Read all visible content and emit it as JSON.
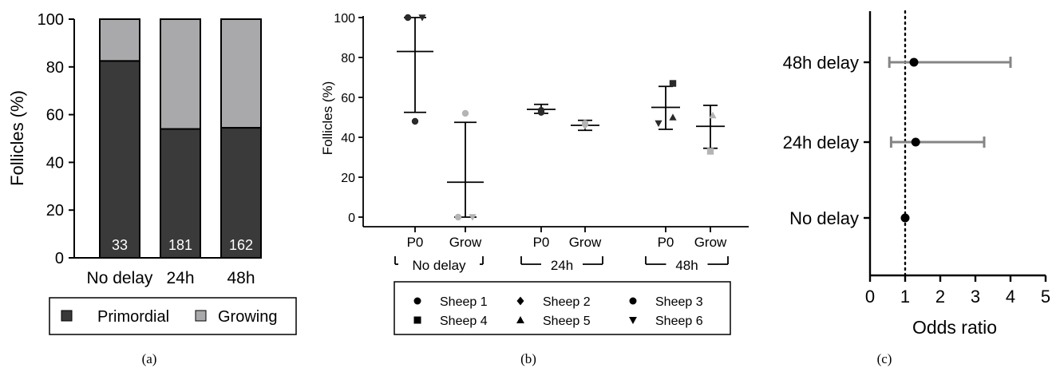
{
  "chart_data": [
    {
      "panel": "(a)",
      "type": "bar",
      "stacked": true,
      "categories": [
        "No delay",
        "24h",
        "48h"
      ],
      "series": [
        {
          "name": "Primordial",
          "values": [
            82.5,
            54,
            54.5
          ],
          "color": "#3a3a3a"
        },
        {
          "name": "Growing",
          "values": [
            17.5,
            46,
            45.5
          ],
          "color": "#a9a9ac"
        }
      ],
      "bar_labels": [
        "33",
        "181",
        "162"
      ],
      "ylabel": "Follicles (%)",
      "yticks": [
        "0",
        "20",
        "40",
        "60",
        "80",
        "100"
      ],
      "ylim": [
        0,
        100
      ],
      "legend_position": "bottom"
    },
    {
      "panel": "(b)",
      "type": "scatter",
      "ylabel": "Follicles (%)",
      "ylim": [
        0,
        100
      ],
      "yticks": [
        "0",
        "20",
        "40",
        "60",
        "80",
        "100"
      ],
      "categories": [
        "P0",
        "Grow",
        "P0",
        "Grow",
        "P0",
        "Grow"
      ],
      "groups": [
        {
          "label": "No delay",
          "members": [
            0,
            1
          ]
        },
        {
          "label": "24h",
          "members": [
            2,
            3
          ]
        },
        {
          "label": "48h",
          "members": [
            4,
            5
          ]
        }
      ],
      "summary": [
        {
          "category": 0,
          "mean": 83,
          "lower": 52.5,
          "upper": 100
        },
        {
          "category": 1,
          "mean": 17.5,
          "lower": 0,
          "upper": 47.5
        },
        {
          "category": 2,
          "mean": 54,
          "lower": 52,
          "upper": 56.5
        },
        {
          "category": 3,
          "mean": 46,
          "lower": 43.5,
          "upper": 48.5
        },
        {
          "category": 4,
          "mean": 55,
          "lower": 44,
          "upper": 65.5
        },
        {
          "category": 5,
          "mean": 45.5,
          "lower": 34.5,
          "upper": 56
        }
      ],
      "points": [
        {
          "category": 0,
          "sheep": "Sheep 1",
          "y": 100,
          "dx": -0.15
        },
        {
          "category": 0,
          "sheep": "Sheep 6",
          "y": 100,
          "dx": 0.15
        },
        {
          "category": 0,
          "sheep": "Sheep 1",
          "y": 48,
          "dx": 0
        },
        {
          "category": 1,
          "sheep": "Sheep 1",
          "y": 52,
          "dx": 0
        },
        {
          "category": 1,
          "sheep": "Sheep 1",
          "y": 0,
          "dx": -0.15
        },
        {
          "category": 1,
          "sheep": "Sheep 6",
          "y": 0,
          "dx": 0.15
        },
        {
          "category": 2,
          "sheep": "Sheep 1",
          "y": 52.5,
          "dx": 0
        },
        {
          "category": 2,
          "sheep": "Sheep 3",
          "y": 53.5,
          "dx": 0
        },
        {
          "category": 3,
          "sheep": "Sheep 2",
          "y": 46,
          "dx": 0
        },
        {
          "category": 3,
          "sheep": "Sheep 3",
          "y": 47,
          "dx": 0
        },
        {
          "category": 4,
          "sheep": "Sheep 4",
          "y": 67,
          "dx": 0.15
        },
        {
          "category": 4,
          "sheep": "Sheep 6",
          "y": 47,
          "dx": -0.15
        },
        {
          "category": 4,
          "sheep": "Sheep 5",
          "y": 50,
          "dx": 0.15
        },
        {
          "category": 5,
          "sheep": "Sheep 5",
          "y": 51,
          "dx": 0.05
        },
        {
          "category": 5,
          "sheep": "Sheep 4",
          "y": 33,
          "dx": 0
        }
      ],
      "legend": [
        {
          "name": "Sheep 1",
          "marker": "circle"
        },
        {
          "name": "Sheep 2",
          "marker": "diamond"
        },
        {
          "name": "Sheep 3",
          "marker": "circle"
        },
        {
          "name": "Sheep 4",
          "marker": "square"
        },
        {
          "name": "Sheep 5",
          "marker": "triangle-up"
        },
        {
          "name": "Sheep 6",
          "marker": "triangle-down"
        }
      ],
      "colors": {
        "P0": "#2a2a2a",
        "Grow": "#b4b4b4"
      }
    },
    {
      "panel": "(c)",
      "type": "forest",
      "categories": [
        "48h delay",
        "24h delay",
        "No delay"
      ],
      "estimates": [
        {
          "label": "48h delay",
          "value": 1.25,
          "lower": 0.55,
          "upper": 4.0
        },
        {
          "label": "24h delay",
          "value": 1.3,
          "lower": 0.6,
          "upper": 3.25
        },
        {
          "label": "No delay",
          "value": 1.0,
          "lower": null,
          "upper": null
        }
      ],
      "xlabel": "Odds ratio",
      "xlim": [
        0,
        5
      ],
      "xticks": [
        "0",
        "1",
        "2",
        "3",
        "4",
        "5"
      ],
      "reference_line": 1,
      "colors": {
        "ci": "#858585",
        "point": "#000000"
      }
    }
  ],
  "captions": [
    "(a)",
    "(b)",
    "(c)"
  ]
}
